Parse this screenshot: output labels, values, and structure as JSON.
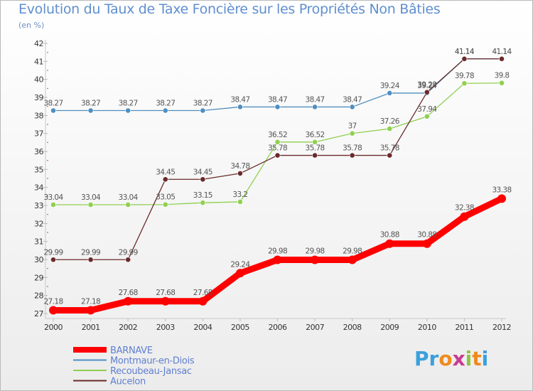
{
  "title": "Evolution du Taux de Taxe Foncière sur les Propriétés Non Bâties",
  "subtitle": "(en %)",
  "logo": {
    "letters": [
      "P",
      "r",
      "o",
      "x",
      "i",
      "t",
      "i"
    ],
    "colors": [
      "#3aa0dc",
      "#3aa0dc",
      "#f08a1e",
      "#c93a8f",
      "#8dc63f",
      "#f08a1e",
      "#3aa0dc"
    ]
  },
  "chart_data": {
    "type": "line",
    "x": [
      "2000",
      "2001",
      "2002",
      "2003",
      "2004",
      "2005",
      "2006",
      "2007",
      "2008",
      "2009",
      "2010",
      "2011",
      "2012"
    ],
    "ylim": [
      27,
      42
    ],
    "yticks": [
      "27",
      "28",
      "29",
      "30",
      "31",
      "32",
      "33",
      "34",
      "35",
      "36",
      "37",
      "38",
      "39",
      "40",
      "41",
      "42"
    ],
    "grid": false,
    "legend_position": "bottom-left",
    "series": [
      {
        "name": "BARNAVE",
        "color": "#ff0000",
        "values": [
          27.18,
          27.18,
          27.68,
          27.68,
          27.68,
          29.24,
          29.98,
          29.98,
          29.98,
          30.88,
          30.88,
          32.38,
          33.38
        ],
        "labels": [
          "27.18",
          "27.18",
          "27.68",
          "27.68",
          "27.68",
          "29.24",
          "29.98",
          "29.98",
          "29.98",
          "30.88",
          "30.88",
          "32.38",
          "33.38"
        ]
      },
      {
        "name": "Montmaur-en-Diois",
        "color": "#4f8fc0",
        "values": [
          38.27,
          38.27,
          38.27,
          38.27,
          38.27,
          38.47,
          38.47,
          38.47,
          38.47,
          39.24,
          39.24,
          41.14,
          41.14
        ],
        "labels": [
          "38.27",
          "38.27",
          "38.27",
          "38.27",
          "38.27",
          "38.47",
          "38.47",
          "38.47",
          "38.47",
          "39.24",
          "39.24",
          "41.14",
          "41.14"
        ]
      },
      {
        "name": "Recoubeau-Jansac",
        "color": "#8fd050",
        "values": [
          33.04,
          33.04,
          33.04,
          33.05,
          33.15,
          33.2,
          36.52,
          36.52,
          37,
          37.26,
          37.94,
          39.78,
          39.8
        ],
        "labels": [
          "33.04",
          "33.04",
          "33.04",
          "33.05",
          "33.15",
          "33.2",
          "36.52",
          "36.52",
          "37",
          "37.26",
          "37.94",
          "39.78",
          "39.8"
        ]
      },
      {
        "name": "Aucelon",
        "color": "#6a2a2a",
        "values": [
          29.99,
          29.99,
          29.99,
          34.45,
          34.45,
          34.78,
          35.78,
          35.78,
          35.78,
          35.78,
          39.29,
          41.14,
          41.14
        ],
        "labels": [
          "29.99",
          "29.99",
          "29.99",
          "34.45",
          "34.45",
          "34.78",
          "35.78",
          "35.78",
          "35.78",
          "35.78",
          "39.29",
          "41.14",
          "41.14"
        ]
      }
    ]
  }
}
